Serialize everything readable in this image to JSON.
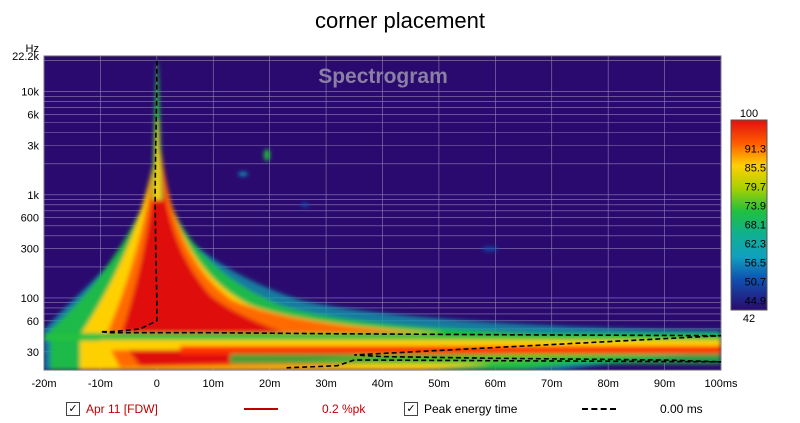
{
  "chart_data": {
    "type": "heatmap",
    "title": "corner placement",
    "watermark": "Spectrogram",
    "y_unit": "Hz",
    "x_unit": "ms",
    "y_scale": "log",
    "xlim": [
      -20,
      100
    ],
    "ylim": [
      20,
      22200
    ],
    "x_ticks": [
      "-20m",
      "-10m",
      "0",
      "10m",
      "20m",
      "30m",
      "40m",
      "50m",
      "60m",
      "70m",
      "80m",
      "90m",
      "100ms"
    ],
    "y_ticks": [
      "22.2k",
      "10k",
      "6k",
      "3k",
      "1k",
      "600",
      "300",
      "100",
      "60",
      "30"
    ],
    "colorbar": {
      "max_label": "100",
      "min_label": "42",
      "tick_labels": [
        "91.3",
        "85.5",
        "79.7",
        "73.9",
        "68.1",
        "62.3",
        "56.5",
        "50.7",
        "44.9"
      ]
    },
    "peak_energy_time_ms": [
      [
        0,
        20000
      ],
      [
        0,
        10000
      ],
      [
        -0.2,
        3000
      ],
      [
        -0.3,
        1000
      ],
      [
        -0.2,
        300
      ],
      [
        0,
        100
      ],
      [
        0,
        60
      ],
      [
        -3,
        50
      ],
      [
        -8,
        47
      ],
      [
        -10,
        47
      ],
      [
        -8,
        46
      ],
      [
        10,
        46
      ],
      [
        30,
        45
      ],
      [
        60,
        44
      ],
      [
        100,
        43
      ],
      [
        35,
        28
      ],
      [
        40,
        27
      ],
      [
        60,
        26
      ],
      [
        90,
        25
      ],
      [
        100,
        24
      ],
      [
        35,
        25
      ],
      [
        32,
        22
      ],
      [
        23,
        21
      ]
    ]
  },
  "legend": {
    "series1_name": "Apr 11 [FDW]",
    "series1_value": "0.2 %pk",
    "series1_color": "#c00000",
    "series2_name": "Peak energy time",
    "series2_value": "0.00 ms",
    "series2_color": "#000000",
    "check": "✓"
  },
  "colors": {
    "background": "#2a0a6e",
    "grid": "#8f7fb3"
  }
}
